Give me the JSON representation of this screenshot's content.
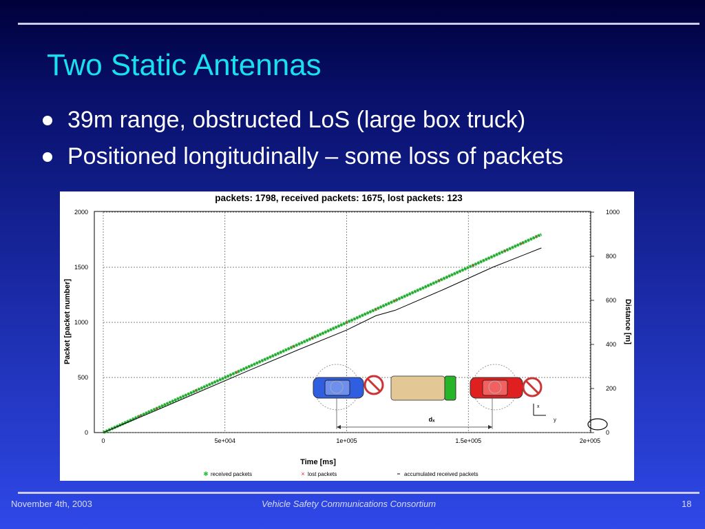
{
  "slide": {
    "title": "Two Static Antennas",
    "bullets": [
      "39m range, obstructed LoS (large box truck)",
      "Positioned longitudinally – some loss of packets"
    ],
    "footer": {
      "date": "November 4th, 2003",
      "org": "Vehicle Safety Communications Consortium",
      "page": "18"
    }
  },
  "colors": {
    "title": "#19e0f0",
    "received": "#2cbf3c",
    "lost": "#e0242c",
    "accumulated": "#000000"
  },
  "diagram": {
    "distance_label": "dₓ",
    "axis_x_label": "x",
    "axis_y_label": "y",
    "icons": [
      "blue-car-icon",
      "no-entry-icon",
      "box-truck-icon",
      "red-car-icon",
      "no-entry-icon"
    ]
  },
  "chart_data": {
    "type": "line",
    "title": "packets: 1798, received packets: 1675, lost packets: 123",
    "xlabel": "Time [ms]",
    "ylabel": "Packet [packet number]",
    "y2label": "Distance [m]",
    "xlim": [
      0,
      200000
    ],
    "ylim": [
      0,
      2000
    ],
    "y2lim": [
      0,
      1000
    ],
    "xticks": [
      0,
      50000,
      100000,
      150000,
      200000
    ],
    "xtick_labels": [
      "0",
      "5e+004",
      "1e+005",
      "1.5e+005",
      "2e+005"
    ],
    "yticks": [
      0,
      500,
      1000,
      1500,
      2000
    ],
    "ytick_labels": [
      "0",
      "500",
      "1000",
      "1500",
      "2000"
    ],
    "y2ticks": [
      0,
      200,
      400,
      600,
      800,
      1000
    ],
    "y2tick_labels": [
      "0",
      "200",
      "400",
      "600",
      "800",
      "1000"
    ],
    "grid": true,
    "legend_position": "bottom",
    "series": [
      {
        "name": "received packets",
        "style": "markers",
        "x": [
          0,
          180000
        ],
        "y": [
          0,
          1798
        ]
      },
      {
        "name": "lost packets",
        "style": "markers",
        "x": [
          15000,
          22000,
          38000,
          55000,
          78000,
          86000,
          100000,
          112000,
          120000,
          138000,
          152000,
          165000,
          172000,
          178000
        ],
        "y": [
          150,
          220,
          380,
          550,
          780,
          860,
          1000,
          1120,
          1200,
          1380,
          1520,
          1650,
          1720,
          1780
        ]
      },
      {
        "name": "accumulated received packets",
        "style": "line",
        "x": [
          0,
          20000,
          40000,
          60000,
          80000,
          100000,
          112000,
          120000,
          140000,
          160000,
          180000
        ],
        "y": [
          0,
          185,
          375,
          565,
          750,
          930,
          1060,
          1110,
          1300,
          1500,
          1675
        ]
      }
    ]
  }
}
